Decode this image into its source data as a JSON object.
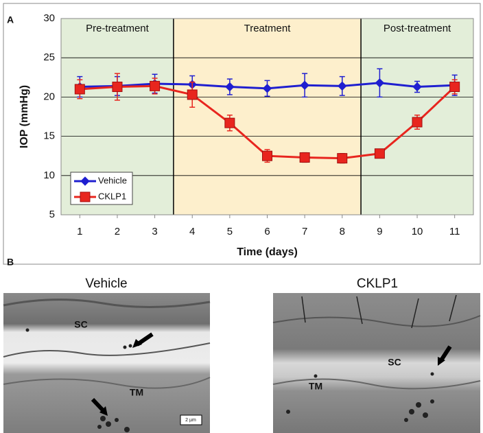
{
  "chart_data": {
    "type": "line",
    "x_label": "Time (days)",
    "y_label": "IOP (mmHg)",
    "x": [
      1,
      2,
      3,
      4,
      5,
      6,
      7,
      8,
      9,
      10,
      11
    ],
    "xlim": [
      0.5,
      11.5
    ],
    "xticks": [
      1,
      2,
      3,
      4,
      5,
      6,
      7,
      8,
      9,
      10,
      11
    ],
    "ylim": [
      5,
      30
    ],
    "yticks": [
      5,
      10,
      15,
      20,
      25,
      30
    ],
    "grid": true,
    "legend": "lower left",
    "regions": [
      {
        "label": "Pre-treatment",
        "start": 0.5,
        "end": 3.5,
        "color": "#e3eed9"
      },
      {
        "label": "Treatment",
        "start": 3.5,
        "end": 8.5,
        "color": "#fdefcc"
      },
      {
        "label": "Post-treatment",
        "start": 8.5,
        "end": 11.5,
        "color": "#e3eed9"
      }
    ],
    "series": [
      {
        "name": "Vehicle",
        "color": "#1f1fd0",
        "marker": "diamond",
        "values": [
          21.3,
          21.4,
          21.7,
          21.6,
          21.3,
          21.1,
          21.5,
          21.4,
          21.8,
          21.3,
          21.5
        ],
        "errors": [
          1.3,
          1.2,
          1.2,
          1.1,
          1.0,
          1.0,
          1.5,
          1.2,
          1.8,
          0.7,
          1.3
        ]
      },
      {
        "name": "CKLP1",
        "color": "#e8251e",
        "marker": "square",
        "values": [
          21.0,
          21.3,
          21.4,
          20.3,
          16.7,
          12.5,
          12.3,
          12.2,
          12.8,
          16.8,
          21.3
        ],
        "errors": [
          1.2,
          1.7,
          1.0,
          1.6,
          1.0,
          0.8,
          0.6,
          0.6,
          0.5,
          0.9,
          0.9
        ]
      }
    ]
  },
  "panel_labels": [
    "A",
    "B"
  ],
  "micrographs": [
    {
      "title": "Vehicle",
      "labels": [
        "SC",
        "TM"
      ],
      "scale_bar": "2 µm"
    },
    {
      "title": "CKLP1",
      "labels": [
        "SC",
        "TM"
      ]
    }
  ]
}
